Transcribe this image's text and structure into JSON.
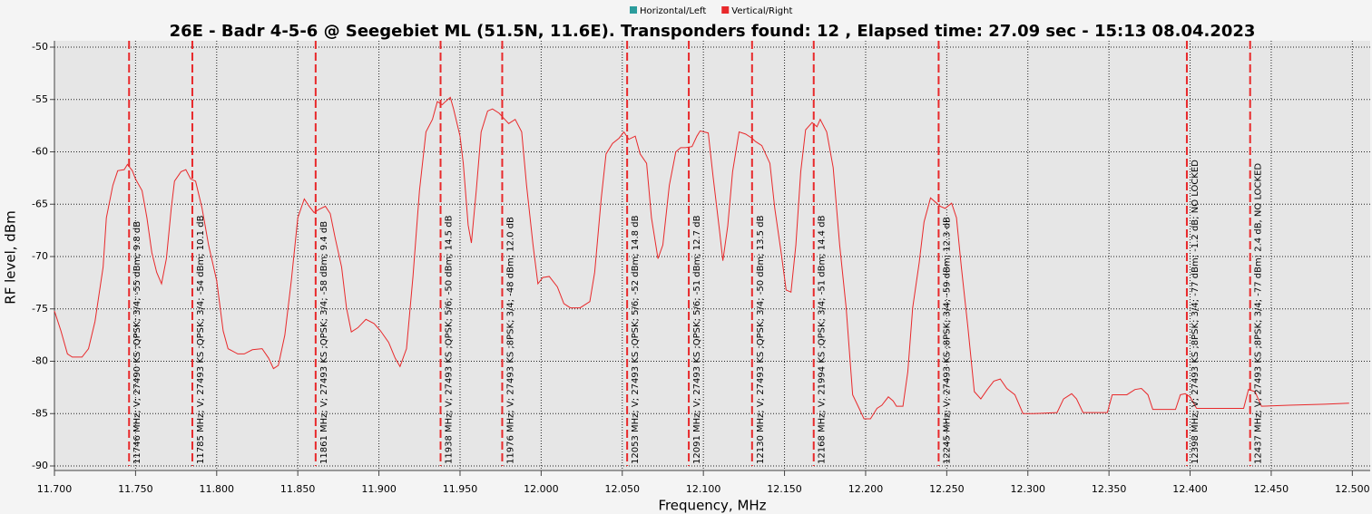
{
  "chart_data": {
    "type": "line",
    "title": "26E - Badr 4-5-6 @ Seegebiet ML (51.5N, 11.6E). Transponders found: 12 , Elapsed time: 27.09 sec - 15:13 08.04.2023",
    "x_label": "Frequency, MHz",
    "y_label": "RF level, dBm",
    "xlim": [
      11700,
      12511
    ],
    "ylim": [
      -90,
      -50
    ],
    "xticks": [
      {
        "value": 11700,
        "label": "11.700"
      },
      {
        "value": 11750,
        "label": "11.750"
      },
      {
        "value": 11800,
        "label": "11.800"
      },
      {
        "value": 11850,
        "label": "11.850"
      },
      {
        "value": 11900,
        "label": "11.900"
      },
      {
        "value": 11950,
        "label": "11.950"
      },
      {
        "value": 12000,
        "label": "12.000"
      },
      {
        "value": 12050,
        "label": "12.050"
      },
      {
        "value": 12100,
        "label": "12.100"
      },
      {
        "value": 12150,
        "label": "12.150"
      },
      {
        "value": 12200,
        "label": "12.200"
      },
      {
        "value": 12250,
        "label": "12.250"
      },
      {
        "value": 12300,
        "label": "12.300"
      },
      {
        "value": 12350,
        "label": "12.350"
      },
      {
        "value": 12400,
        "label": "12.400"
      },
      {
        "value": 12450,
        "label": "12.450"
      },
      {
        "value": 12500,
        "label": "12.500"
      }
    ],
    "yticks": [
      -50,
      -55,
      -60,
      -65,
      -70,
      -75,
      -80,
      -85,
      -90
    ],
    "grid": true,
    "series": [
      {
        "name": "Horizontal/Left",
        "color": "#2b9c9c",
        "x": [],
        "values": []
      },
      {
        "name": "Vertical/Right",
        "color": "#e8292b",
        "x": [
          11700,
          11704,
          11708,
          11711,
          11717,
          11721,
          11725,
          11730,
          11732,
          11736,
          11739,
          11743,
          11745,
          11748,
          11750,
          11754,
          11757,
          11760,
          11763,
          11766,
          11769,
          11772,
          11774,
          11778,
          11781,
          11784,
          11787,
          11791,
          11795,
          11800,
          11804,
          11807,
          11813,
          11817,
          11822,
          11828,
          11832,
          11835,
          11838,
          11842,
          11846,
          11850,
          11854,
          11857,
          11860,
          11863,
          11867,
          11870,
          11873,
          11877,
          11880,
          11883,
          11887,
          11892,
          11897,
          11901,
          11906,
          11910,
          11913,
          11917,
          11921,
          11925,
          11929,
          11933,
          11936,
          11939,
          11941,
          11944,
          11946,
          11950,
          11952,
          11955,
          11957,
          11960,
          11963,
          11967,
          11970,
          11974,
          11977,
          11980,
          11984,
          11988,
          11991,
          11995,
          11998,
          12001,
          12005,
          12010,
          12014,
          12018,
          12024,
          12030,
          12033,
          12037,
          12040,
          12044,
          12048,
          12051,
          12054,
          12058,
          12061,
          12065,
          12068,
          12072,
          12075,
          12079,
          12083,
          12086,
          12089,
          12093,
          12096,
          12098,
          12103,
          12106,
          12110,
          12112,
          12115,
          12118,
          12122,
          12126,
          12130,
          12132,
          12136,
          12141,
          12144,
          12148,
          12151,
          12154,
          12157,
          12160,
          12163,
          12167,
          12170,
          12172,
          12176,
          12180,
          12184,
          12188,
          12192,
          12196,
          12199,
          12203,
          12207,
          12210,
          12214,
          12217,
          12219,
          12223,
          12226,
          12229,
          12233,
          12236,
          12240,
          12243,
          12246,
          12249,
          12253,
          12256,
          12259,
          12263,
          12267,
          12271,
          12275,
          12279,
          12283,
          12287,
          12292,
          12297,
          12304,
          12318,
          12322,
          12327,
          12330,
          12334,
          12349,
          12352,
          12361,
          12366,
          12370,
          12374,
          12377,
          12391,
          12394,
          12397,
          12400,
          12404,
          12433,
          12436,
          12440,
          12444,
          12461,
          12483,
          12498
        ],
        "values": [
          -75.2,
          -77.1,
          -79.3,
          -79.6,
          -79.6,
          -78.8,
          -76.2,
          -71,
          -66.3,
          -63.2,
          -61.8,
          -61.7,
          -61.2,
          -61.8,
          -62.6,
          -63.7,
          -66.3,
          -69.6,
          -71.5,
          -72.6,
          -70.2,
          -65.4,
          -62.8,
          -61.9,
          -61.7,
          -62.6,
          -62.8,
          -65.4,
          -68.9,
          -72.3,
          -77.1,
          -78.8,
          -79.3,
          -79.3,
          -78.9,
          -78.8,
          -79.7,
          -80.7,
          -80.4,
          -77.5,
          -72.3,
          -66.3,
          -64.5,
          -65.2,
          -65.8,
          -65.5,
          -65.2,
          -65.9,
          -68.2,
          -71,
          -74.9,
          -77.2,
          -76.8,
          -76,
          -76.4,
          -77.1,
          -78.2,
          -79.7,
          -80.5,
          -78.8,
          -71.9,
          -63.7,
          -58.1,
          -56.9,
          -55.2,
          -55.5,
          -55.2,
          -54.8,
          -55.9,
          -58.5,
          -61.1,
          -67,
          -68.7,
          -63.7,
          -58.1,
          -56.1,
          -55.9,
          -56.3,
          -56.8,
          -57.3,
          -56.9,
          -58.1,
          -63.2,
          -68.9,
          -72.6,
          -72,
          -71.9,
          -72.9,
          -74.5,
          -74.9,
          -74.9,
          -74.3,
          -71.5,
          -64.5,
          -60.2,
          -59.2,
          -58.7,
          -58.1,
          -58.8,
          -58.5,
          -60.2,
          -61.1,
          -66.3,
          -70.2,
          -68.9,
          -63.2,
          -60,
          -59.6,
          -59.6,
          -59.5,
          -58.5,
          -58,
          -58.2,
          -62.4,
          -67.6,
          -70.4,
          -67.1,
          -61.9,
          -58.1,
          -58.3,
          -58.7,
          -59,
          -59.4,
          -61.1,
          -65.4,
          -69.7,
          -73.2,
          -73.4,
          -68.9,
          -61.9,
          -57.9,
          -57.2,
          -57.6,
          -56.9,
          -58.1,
          -61.5,
          -68.9,
          -74.9,
          -83.2,
          -84.5,
          -85.5,
          -85.5,
          -84.5,
          -84.2,
          -83.4,
          -83.8,
          -84.3,
          -84.3,
          -81,
          -74.9,
          -70.6,
          -66.7,
          -64.4,
          -64.8,
          -65.2,
          -65.4,
          -64.9,
          -66.3,
          -71,
          -76.7,
          -82.9,
          -83.6,
          -82.7,
          -81.9,
          -81.7,
          -82.6,
          -83.2,
          -85,
          -85,
          -84.9,
          -83.6,
          -83.1,
          -83.6,
          -84.9,
          -84.9,
          -83.2,
          -83.2,
          -82.7,
          -82.6,
          -83.2,
          -84.6,
          -84.6,
          -83.2,
          -83.1,
          -83.4,
          -84.5,
          -84.5,
          -82.7,
          -82.9,
          -84.3,
          -84.2,
          -84.1,
          -84
        ]
      }
    ],
    "marker_color": "#e8292b",
    "markers": [
      {
        "x": 11746,
        "label": "11746 MHz; V; 27490 KS ;QPSK; 3/4; -55 dBm; 9.8 dB"
      },
      {
        "x": 11785,
        "label": "11785 MHz; V; 27493 KS ;QPSK; 3/4; -54 dBm; 10.1 dB"
      },
      {
        "x": 11861,
        "label": "11861 MHz; V; 27493 KS ;QPSK; 3/4; -58 dBm; 9.4 dB"
      },
      {
        "x": 11938,
        "label": "11938 MHz; V; 27493 KS ;QPSK; 5/6; -50 dBm; 14.5 dB"
      },
      {
        "x": 11976,
        "label": "11976 MHz; V; 27493 KS ;8PSK; 3/4; -48 dBm; 12.0 dB"
      },
      {
        "x": 12053,
        "label": "12053 MHz; V; 27493 KS ;QPSK; 5/6; -52 dBm; 14.8 dB"
      },
      {
        "x": 12091,
        "label": "12091 MHz; V; 27493 KS ;QPSK; 5/6; -51 dBm; 12.7 dB"
      },
      {
        "x": 12130,
        "label": "12130 MHz; V; 27493 KS ;QPSK; 3/4; -50 dBm; 13.5 dB"
      },
      {
        "x": 12168,
        "label": "12168 MHz; V; 21994 KS ;QPSK; 3/4; -51 dBm; 14.4 dB"
      },
      {
        "x": 12245,
        "label": "12245 MHz; V; 27493 KS ;8PSK; 3/4; -59 dBm; 12.3 dB"
      },
      {
        "x": 12398,
        "label": "12398 MHz; V; 27493 KS ;8PSK; 3/4; -77 dBm; -1.2 dB; NO LOCKED"
      },
      {
        "x": 12437,
        "label": "12437 MHz; V; 27493 KS ;8PSK; 3/4; -77 dBm; 2.4 dB, NO LOCKED"
      }
    ]
  }
}
